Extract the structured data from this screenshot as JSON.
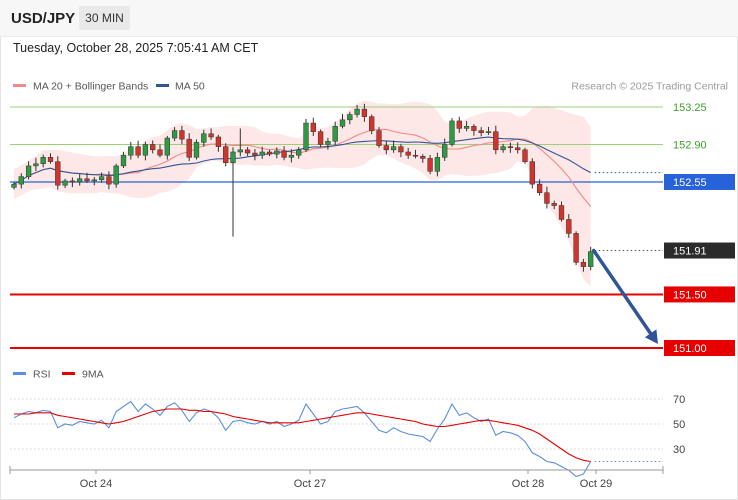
{
  "header": {
    "symbol": "USD/JPY",
    "timeframe": "30 MIN",
    "datetime": "Tuesday, October 28, 2025 7:05:41 AM CET"
  },
  "colors": {
    "ma20": "#f08a8a",
    "ma50": "#2f5597",
    "band": "#fde3e3",
    "green_level": "#9dcf7a",
    "blue_level": "#2763d8",
    "red_level": "#e60000",
    "current_tag": "#2b2b2b",
    "rsi": "#5b8ee0",
    "rsi_ma": "#e60000",
    "arrow": "#2f5597"
  },
  "legend": {
    "ma20_label": "MA 20 + Bollinger Bands",
    "ma50_label": "MA 50",
    "copyright": "Research © 2025 Trading Central"
  },
  "rsi_legend": {
    "rsi_label": "RSI",
    "ma_label": "9MA"
  },
  "chart_data": {
    "type": "candlestick",
    "x_labels": [
      "Oct 24",
      "Oct 27",
      "Oct 28",
      "Oct 29"
    ],
    "price_range": [
      150.97,
      153.3
    ],
    "levels": [
      {
        "value": 153.25,
        "label": "153.25",
        "kind": "resistance-green"
      },
      {
        "value": 152.9,
        "label": "152.90",
        "kind": "resistance-green"
      },
      {
        "value": 152.55,
        "label": "152.55",
        "kind": "pivot-blue"
      },
      {
        "value": 151.91,
        "label": "151.91",
        "kind": "current-price"
      },
      {
        "value": 151.5,
        "label": "151.50",
        "kind": "support-red"
      },
      {
        "value": 151.0,
        "label": "151.00",
        "kind": "support-red"
      }
    ],
    "projection": {
      "from": 151.91,
      "to": 151.0,
      "direction": "down"
    },
    "close_series": [
      152.53,
      152.6,
      152.7,
      152.72,
      152.78,
      152.74,
      152.52,
      152.56,
      152.55,
      152.58,
      152.56,
      152.57,
      152.6,
      152.53,
      152.7,
      152.8,
      152.88,
      152.8,
      152.9,
      152.85,
      152.8,
      152.96,
      153.03,
      152.95,
      152.78,
      152.92,
      153.0,
      152.97,
      152.88,
      152.73,
      152.83,
      152.85,
      152.82,
      152.8,
      152.83,
      152.81,
      152.84,
      152.78,
      152.8,
      152.85,
      153.1,
      153.02,
      152.9,
      152.93,
      153.07,
      153.13,
      153.18,
      153.23,
      153.16,
      153.03,
      152.89,
      152.85,
      152.88,
      152.83,
      152.8,
      152.79,
      152.77,
      152.65,
      152.78,
      152.9,
      153.12,
      153.05,
      153.07,
      153.03,
      153.01,
      153.02,
      152.85,
      152.88,
      152.87,
      152.85,
      152.74,
      152.53,
      152.45,
      152.35,
      152.33,
      152.2,
      152.07,
      151.8,
      151.76,
      151.9
    ],
    "rsi": {
      "levels": [
        70,
        50,
        30
      ],
      "range": [
        10,
        85
      ],
      "values": [
        55,
        58,
        60,
        59,
        61,
        60,
        47,
        50,
        49,
        52,
        51,
        50,
        53,
        47,
        60,
        64,
        68,
        60,
        66,
        62,
        57,
        64,
        67,
        61,
        52,
        59,
        62,
        60,
        55,
        45,
        52,
        53,
        51,
        50,
        52,
        50,
        52,
        48,
        50,
        53,
        66,
        58,
        50,
        52,
        60,
        62,
        63,
        64,
        59,
        52,
        45,
        43,
        47,
        44,
        42,
        41,
        40,
        36,
        46,
        54,
        66,
        57,
        59,
        55,
        52,
        54,
        41,
        44,
        43,
        41,
        36,
        27,
        24,
        20,
        19,
        16,
        13,
        8,
        10,
        20
      ],
      "ma9": [
        58,
        58,
        58,
        59,
        59,
        59,
        57,
        56,
        55,
        54,
        53,
        52,
        51,
        50,
        51,
        52,
        54,
        56,
        58,
        60,
        61,
        62,
        62,
        62,
        61,
        61,
        60,
        60,
        59,
        58,
        56,
        55,
        54,
        53,
        52,
        51,
        51,
        51,
        51,
        51,
        52,
        53,
        54,
        55,
        56,
        57,
        58,
        59,
        59,
        58,
        57,
        56,
        55,
        54,
        53,
        52,
        50,
        49,
        48,
        48,
        49,
        50,
        51,
        52,
        53,
        53,
        52,
        51,
        50,
        49,
        47,
        45,
        42,
        38,
        34,
        30,
        26,
        23,
        21,
        20
      ]
    }
  }
}
